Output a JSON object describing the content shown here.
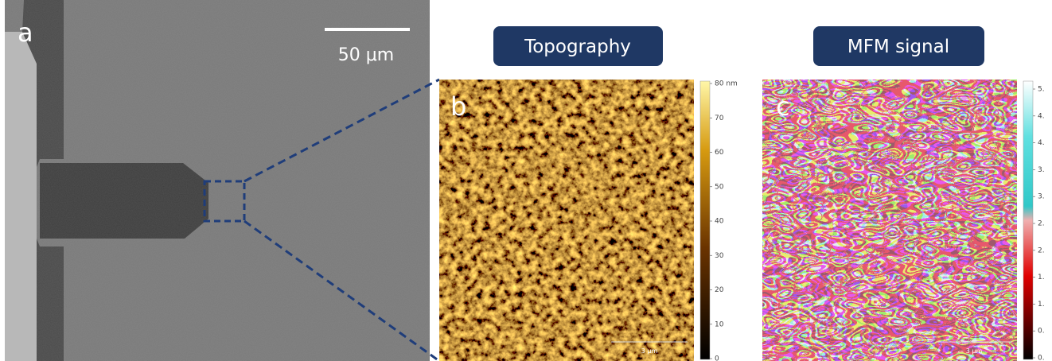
{
  "panels": [
    {
      "label": "a",
      "scale_bar": "50 μm"
    },
    {
      "label": "b",
      "title": "Topography",
      "scale_bar": "3 μm",
      "colorbar_ticks": [
        "80 nm",
        "70",
        "60",
        "50",
        "40",
        "30",
        "20",
        "10",
        "0"
      ]
    },
    {
      "label": "c",
      "title": "MFM signal",
      "scale_bar": "3 μm",
      "colorbar_ticks": [
        "5.",
        "4.",
        "4.",
        "3.",
        "3.",
        "2.",
        "2.",
        "1.",
        "1.",
        "0.",
        "0."
      ]
    }
  ]
}
